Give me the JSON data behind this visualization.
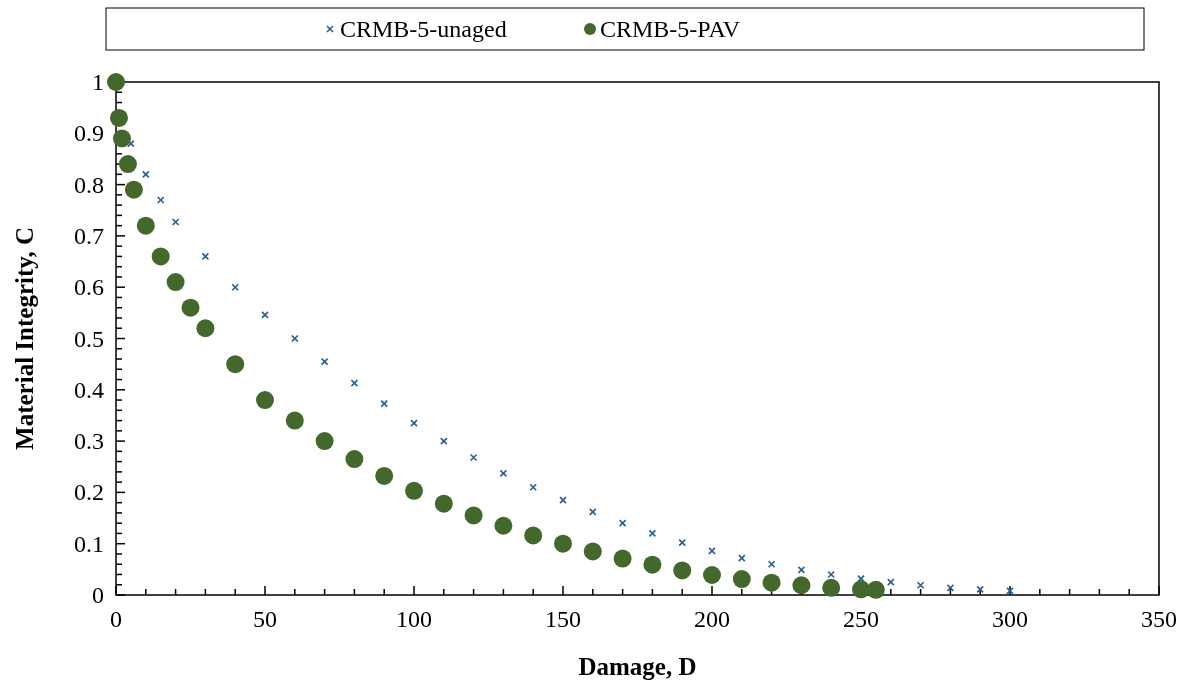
{
  "chart_data": {
    "type": "scatter",
    "xlabel": "Damage, D",
    "ylabel": "Material Integrity, C",
    "xlim": [
      0,
      350
    ],
    "ylim": [
      0,
      1
    ],
    "xticks": [
      0,
      {
        "value": 10,
        "label": null
      },
      {
        "value": 20,
        "label": null
      },
      {
        "value": 30,
        "label": null
      },
      {
        "value": 40,
        "label": null
      },
      50,
      {
        "value": 60,
        "label": null
      },
      {
        "value": 70,
        "label": null
      },
      {
        "value": 80,
        "label": null
      },
      {
        "value": 90,
        "label": null
      },
      100,
      {
        "value": 110,
        "label": null
      },
      {
        "value": 120,
        "label": null
      },
      {
        "value": 130,
        "label": null
      },
      {
        "value": 140,
        "label": null
      },
      150,
      {
        "value": 160,
        "label": null
      },
      {
        "value": 170,
        "label": null
      },
      {
        "value": 180,
        "label": null
      },
      {
        "value": 190,
        "label": null
      },
      200,
      {
        "value": 210,
        "label": null
      },
      {
        "value": 220,
        "label": null
      },
      {
        "value": 230,
        "label": null
      },
      {
        "value": 240,
        "label": null
      },
      250,
      {
        "value": 260,
        "label": null
      },
      {
        "value": 270,
        "label": null
      },
      {
        "value": 280,
        "label": null
      },
      {
        "value": 290,
        "label": null
      },
      300,
      {
        "value": 310,
        "label": null
      },
      {
        "value": 320,
        "label": null
      },
      {
        "value": 330,
        "label": null
      },
      {
        "value": 340,
        "label": null
      },
      350
    ],
    "yticks": [
      0,
      {
        "value": 0.02,
        "label": null
      },
      {
        "value": 0.04,
        "label": null
      },
      {
        "value": 0.06,
        "label": null
      },
      {
        "value": 0.08,
        "label": null
      },
      0.1,
      {
        "value": 0.12,
        "label": null
      },
      {
        "value": 0.14,
        "label": null
      },
      {
        "value": 0.16,
        "label": null
      },
      {
        "value": 0.18,
        "label": null
      },
      0.2,
      {
        "value": 0.22,
        "label": null
      },
      {
        "value": 0.24,
        "label": null
      },
      {
        "value": 0.26,
        "label": null
      },
      {
        "value": 0.28,
        "label": null
      },
      0.3,
      {
        "value": 0.32,
        "label": null
      },
      {
        "value": 0.34,
        "label": null
      },
      {
        "value": 0.36,
        "label": null
      },
      {
        "value": 0.38,
        "label": null
      },
      0.4,
      {
        "value": 0.42,
        "label": null
      },
      {
        "value": 0.44,
        "label": null
      },
      {
        "value": 0.46,
        "label": null
      },
      {
        "value": 0.48,
        "label": null
      },
      0.5,
      {
        "value": 0.52,
        "label": null
      },
      {
        "value": 0.54,
        "label": null
      },
      {
        "value": 0.56,
        "label": null
      },
      {
        "value": 0.58,
        "label": null
      },
      0.6,
      {
        "value": 0.62,
        "label": null
      },
      {
        "value": 0.64,
        "label": null
      },
      {
        "value": 0.66,
        "label": null
      },
      {
        "value": 0.68,
        "label": null
      },
      0.7,
      {
        "value": 0.72,
        "label": null
      },
      {
        "value": 0.74,
        "label": null
      },
      {
        "value": 0.76,
        "label": null
      },
      {
        "value": 0.78,
        "label": null
      },
      0.8,
      {
        "value": 0.82,
        "label": null
      },
      {
        "value": 0.84,
        "label": null
      },
      {
        "value": 0.86,
        "label": null
      },
      {
        "value": 0.88,
        "label": null
      },
      0.9,
      {
        "value": 0.92,
        "label": null
      },
      {
        "value": 0.94,
        "label": null
      },
      {
        "value": 0.96,
        "label": null
      },
      {
        "value": 0.98,
        "label": null
      },
      1
    ],
    "grid": false,
    "legend": "top",
    "series": [
      {
        "name": "CRMB-5-unaged",
        "color": "#255e91",
        "marker": "cross",
        "x": [
          5,
          10,
          15,
          20,
          30,
          40,
          50,
          60,
          70,
          80,
          90,
          100,
          110,
          120,
          130,
          140,
          150,
          160,
          170,
          180,
          190,
          200,
          210,
          220,
          230,
          240,
          250,
          260,
          270,
          280,
          290,
          300
        ],
        "values": [
          0.88,
          0.82,
          0.77,
          0.727,
          0.66,
          0.6,
          0.546,
          0.5,
          0.455,
          0.413,
          0.373,
          0.335,
          0.3,
          0.268,
          0.237,
          0.21,
          0.185,
          0.162,
          0.14,
          0.12,
          0.102,
          0.086,
          0.072,
          0.06,
          0.049,
          0.04,
          0.032,
          0.025,
          0.019,
          0.014,
          0.011,
          0.008
        ]
      },
      {
        "name": "CRMB-5-PAV",
        "color": "#43682b",
        "marker": "circle",
        "x": [
          0,
          1,
          2,
          4,
          6,
          10,
          15,
          20,
          25,
          30,
          40,
          50,
          60,
          70,
          80,
          90,
          100,
          110,
          120,
          130,
          140,
          150,
          160,
          170,
          180,
          190,
          200,
          210,
          220,
          230,
          240,
          250,
          255
        ],
        "values": [
          1.0,
          0.93,
          0.89,
          0.84,
          0.79,
          0.72,
          0.66,
          0.61,
          0.56,
          0.52,
          0.45,
          0.38,
          0.34,
          0.3,
          0.265,
          0.232,
          0.203,
          0.178,
          0.155,
          0.135,
          0.116,
          0.1,
          0.085,
          0.071,
          0.059,
          0.048,
          0.039,
          0.031,
          0.024,
          0.019,
          0.014,
          0.011,
          0.01
        ]
      }
    ]
  }
}
